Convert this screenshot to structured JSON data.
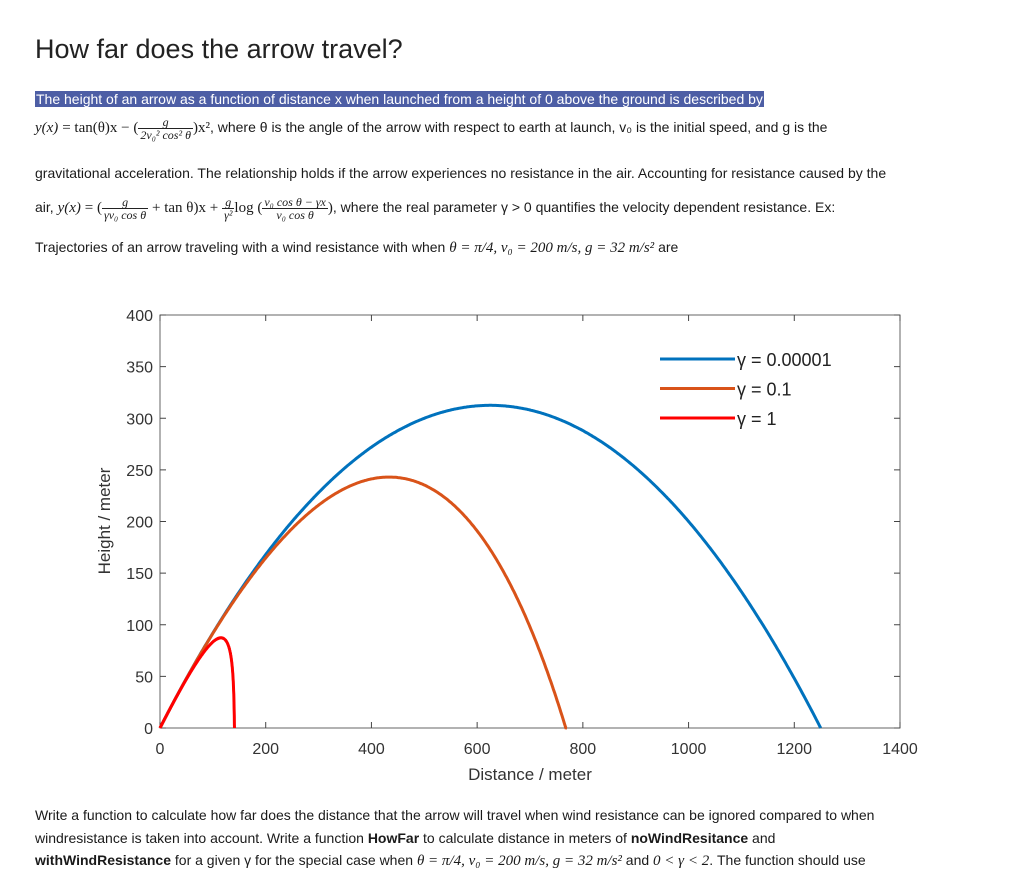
{
  "page": {
    "title": "How far does the arrow travel?",
    "intro_highlighted": "The height of an arrow as a function of distance x when launched from a height of 0 above the ground is described by",
    "eq1": {
      "lhs": "y(x)",
      "rhs_start": "= tan(θ)x − (",
      "frac_num": "g",
      "frac_den": "2v₀² cos² θ",
      "rhs_end": ")x²",
      "after": ", where θ is the angle of the arrow with respect to earth at launch, v₀ is the initial speed, and g is the"
    },
    "line3": "gravitational acceleration.  The relationship holds if the arrow experiences no resistance in the air.  Accounting for resistance caused by the",
    "eq2": {
      "prefix": "air, ",
      "lhs": "y(x)",
      "p1": "= (",
      "f1_num": "g",
      "f1_den": "γv₀ cos θ",
      "p2": "+ tan θ)x +",
      "f2_num": "g",
      "f2_den": "γ²",
      "p3": "log (",
      "f3_num": "v₀ cos θ − γx",
      "f3_den": "v₀ cos θ",
      "p4": ")",
      "after": ", where the real parameter γ > 0 quantifies the velocity dependent resistance.   Ex:"
    },
    "line5_text": "Trajectories of an arrow traveling with a wind resistance with when ",
    "line5_math": "θ = π/4,  v₀ = 200  m/s,  g = 32  m/s²",
    "line5_end": " are",
    "bottom": {
      "line1": "Write a function to calculate how far does the distance that the arrow will travel when wind resistance can be ignored compared to when",
      "line2_a": "windresistance is taken into account. Write a function ",
      "line2_b1": "HowFar",
      "line2_c": " to calculate distance in meters of ",
      "line2_b2": "noWindResitance",
      "line2_d": " and",
      "line3_b": "withWindResistance",
      "line3_a": " for a given γ for the special case when ",
      "line3_math": "θ = π/4,  v₀ = 200  m/s,  g = 32  m/s²",
      "line3_mid": " and ",
      "line3_math2": "0 < γ < 2",
      "line3_end": ".   The function should use"
    }
  },
  "chart_data": {
    "type": "line",
    "title": "",
    "xlabel": "Distance / meter",
    "ylabel": "Height / meter",
    "xlim": [
      0,
      1400
    ],
    "ylim": [
      0,
      400
    ],
    "xticks": [
      0,
      200,
      400,
      600,
      800,
      1000,
      1200,
      1400
    ],
    "yticks": [
      0,
      50,
      100,
      150,
      200,
      250,
      300,
      350,
      400
    ],
    "grid": false,
    "legend_position": "upper right",
    "params": {
      "theta_deg": 45,
      "v0": 200,
      "g": 32
    },
    "series": [
      {
        "name": "γ = 0.00001",
        "gamma": 1e-05,
        "color": "#0072bd",
        "peak": [
          625,
          312.5
        ],
        "range": 1250
      },
      {
        "name": "γ = 0.1",
        "gamma": 0.1,
        "color": "#d95319",
        "peak": [
          440,
          243
        ],
        "range": 765
      },
      {
        "name": "γ = 1",
        "gamma": 1,
        "color": "#ff0000",
        "peak": [
          118,
          87
        ],
        "range": 141
      }
    ]
  }
}
